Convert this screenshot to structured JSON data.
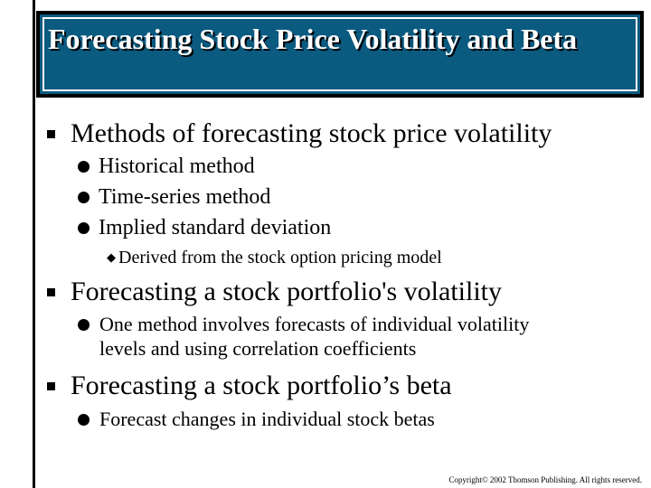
{
  "slide": {
    "title": "Forecasting Stock Price Volatility and Beta",
    "title_colors": {
      "background": "#0b5a80",
      "text": "#ffffff"
    },
    "bullets": [
      {
        "text": "Methods of forecasting stock price volatility",
        "icon": "square-bullet-icon",
        "children": [
          {
            "text": "Historical method",
            "icon": "round-bullet-icon"
          },
          {
            "text": "Time-series method",
            "icon": "round-bullet-icon"
          },
          {
            "text": "Implied standard deviation",
            "icon": "round-bullet-icon",
            "children": [
              {
                "text": "Derived from the stock option pricing model",
                "icon": "diamond-bullet-icon"
              }
            ]
          }
        ]
      },
      {
        "text": "Forecasting a stock portfolio's volatility",
        "icon": "square-bullet-icon",
        "children": [
          {
            "text_line1": "One method involves forecasts of individual volatility",
            "text_line2": "levels and using correlation coefficients",
            "icon": "round-bullet-icon"
          }
        ]
      },
      {
        "text": "Forecasting a stock portfolio’s beta",
        "icon": "square-bullet-icon",
        "children": [
          {
            "text": "Forecast changes in individual stock betas",
            "icon": "round-bullet-icon"
          }
        ]
      }
    ],
    "copyright": "Copyright© 2002 Thomson Publishing. All rights reserved."
  }
}
